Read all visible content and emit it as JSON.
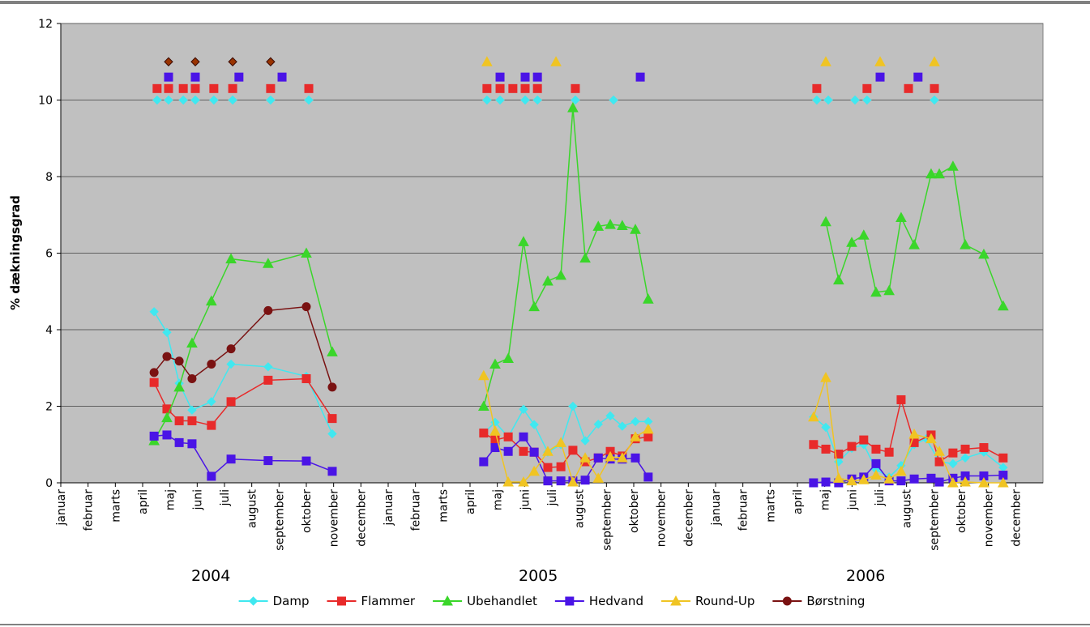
{
  "chart_data": {
    "type": "line",
    "y_label": "% dækningsgrad",
    "ylim": [
      0,
      12
    ],
    "yticks": [
      0,
      2,
      4,
      6,
      8,
      10,
      12
    ],
    "grid": true,
    "xlim": [
      0,
      36
    ],
    "xticks": [
      {
        "value": 0,
        "label": "januar"
      },
      {
        "value": 1,
        "label": "februar"
      },
      {
        "value": 2,
        "label": "marts"
      },
      {
        "value": 3,
        "label": "april"
      },
      {
        "value": 4,
        "label": "maj"
      },
      {
        "value": 5,
        "label": "juni"
      },
      {
        "value": 6,
        "label": "juli"
      },
      {
        "value": 7,
        "label": "august"
      },
      {
        "value": 8,
        "label": "september"
      },
      {
        "value": 9,
        "label": "oktober"
      },
      {
        "value": 10,
        "label": "november"
      },
      {
        "value": 11,
        "label": "december"
      },
      {
        "value": 12,
        "label": "januar"
      },
      {
        "value": 13,
        "label": "februar"
      },
      {
        "value": 14,
        "label": "marts"
      },
      {
        "value": 15,
        "label": "april"
      },
      {
        "value": 16,
        "label": "maj"
      },
      {
        "value": 17,
        "label": "juni"
      },
      {
        "value": 18,
        "label": "juli"
      },
      {
        "value": 19,
        "label": "august"
      },
      {
        "value": 20,
        "label": "september"
      },
      {
        "value": 21,
        "label": "oktober"
      },
      {
        "value": 22,
        "label": "november"
      },
      {
        "value": 23,
        "label": "december"
      },
      {
        "value": 24,
        "label": "januar"
      },
      {
        "value": 25,
        "label": "februar"
      },
      {
        "value": 26,
        "label": "marts"
      },
      {
        "value": 27,
        "label": "april"
      },
      {
        "value": 28,
        "label": "maj"
      },
      {
        "value": 29,
        "label": "juni"
      },
      {
        "value": 30,
        "label": "juli"
      },
      {
        "value": 31,
        "label": "august"
      },
      {
        "value": 32,
        "label": "september"
      },
      {
        "value": 33,
        "label": "oktober"
      },
      {
        "value": 34,
        "label": "november"
      },
      {
        "value": 35,
        "label": "december"
      }
    ],
    "year_labels": [
      "2004",
      "2005",
      "2006"
    ],
    "series": [
      {
        "name": "Damp",
        "color": "#40e8f0",
        "marker": "diamond",
        "x": [
          3.42,
          3.89,
          4.34,
          4.81,
          5.52,
          6.24,
          7.6,
          9.0,
          9.95,
          null,
          15.5,
          15.92,
          16.4,
          16.96,
          17.35,
          17.85,
          18.33,
          18.77,
          19.22,
          19.7,
          20.14,
          20.58,
          21.06,
          21.53,
          null,
          27.59,
          28.04,
          28.51,
          28.99,
          29.43,
          29.88,
          30.36,
          30.8,
          31.28,
          31.72,
          32.2,
          32.7,
          33.15,
          33.83,
          34.54
        ],
        "values": [
          4.47,
          3.93,
          2.6,
          1.9,
          2.12,
          3.1,
          3.03,
          2.78,
          1.28,
          null,
          1.3,
          1.58,
          1.2,
          1.92,
          1.52,
          0.8,
          1.0,
          2.0,
          1.1,
          1.53,
          1.75,
          1.48,
          1.6,
          1.6,
          null,
          1.72,
          1.45,
          0.55,
          0.9,
          1.0,
          0.35,
          0.15,
          0.45,
          1.0,
          1.15,
          0.55,
          0.5,
          0.65,
          0.8,
          0.4
        ],
        "treatment_level": 10,
        "treatment_x": [
          3.53,
          3.95,
          4.49,
          4.93,
          5.61,
          6.3,
          7.69,
          9.09,
          15.62,
          16.1,
          17.02,
          17.47,
          18.86,
          20.26,
          27.71,
          28.13,
          29.11,
          29.55,
          32.02
        ]
      },
      {
        "name": "Flammer",
        "color": "#e82a2a",
        "marker": "square",
        "x": [
          3.42,
          3.89,
          4.34,
          4.81,
          5.52,
          6.24,
          7.6,
          9.0,
          9.95,
          null,
          15.5,
          15.92,
          16.4,
          16.96,
          17.35,
          17.85,
          18.33,
          18.77,
          19.22,
          19.7,
          20.14,
          20.58,
          21.06,
          21.53,
          null,
          27.59,
          28.04,
          28.51,
          28.99,
          29.43,
          29.88,
          30.36,
          30.8,
          31.28,
          31.9,
          32.2,
          32.7,
          33.15,
          33.83,
          34.54
        ],
        "values": [
          2.62,
          1.93,
          1.62,
          1.62,
          1.5,
          2.12,
          2.68,
          2.72,
          1.68,
          null,
          1.3,
          1.12,
          1.2,
          0.82,
          0.8,
          0.4,
          0.42,
          0.85,
          0.55,
          0.65,
          0.82,
          0.7,
          1.15,
          1.2,
          null,
          1.0,
          0.88,
          0.75,
          0.95,
          1.12,
          0.88,
          0.8,
          2.17,
          1.05,
          1.25,
          0.55,
          0.78,
          0.88,
          0.92,
          0.65
        ],
        "treatment_level": 10.3,
        "treatment_x": [
          3.53,
          3.95,
          4.49,
          4.93,
          5.61,
          6.3,
          7.69,
          9.09,
          15.62,
          16.1,
          16.57,
          17.02,
          17.47,
          18.86,
          27.71,
          29.55,
          31.07,
          32.02
        ]
      },
      {
        "name": "Ubehandlet",
        "color": "#3ad62a",
        "marker": "triangle",
        "x": [
          3.42,
          3.89,
          4.34,
          4.81,
          5.52,
          6.24,
          7.6,
          9.0,
          9.95,
          null,
          15.5,
          15.92,
          16.4,
          16.96,
          17.35,
          17.85,
          18.33,
          18.77,
          19.22,
          19.7,
          20.14,
          20.58,
          21.06,
          21.53,
          null,
          28.04,
          28.51,
          28.99,
          29.43,
          29.88,
          30.36,
          30.8,
          31.28,
          31.9,
          32.2,
          32.7,
          33.15,
          33.83,
          34.54
        ],
        "values": [
          1.1,
          1.7,
          2.5,
          3.65,
          4.75,
          5.85,
          5.73,
          6.0,
          3.42,
          null,
          2.0,
          3.1,
          3.25,
          6.3,
          4.6,
          5.27,
          5.42,
          9.8,
          5.87,
          6.7,
          6.75,
          6.72,
          6.62,
          4.8,
          null,
          6.82,
          5.3,
          6.28,
          6.47,
          4.98,
          5.02,
          6.93,
          6.22,
          8.07,
          8.07,
          8.27,
          6.22,
          5.97,
          4.62
        ]
      },
      {
        "name": "Hedvand",
        "color": "#4a14e6",
        "marker": "square",
        "x": [
          3.42,
          3.89,
          4.34,
          4.81,
          5.52,
          6.24,
          7.6,
          9.0,
          9.95,
          null,
          15.5,
          15.92,
          16.4,
          16.96,
          17.35,
          17.85,
          18.33,
          18.77,
          19.22,
          19.7,
          20.14,
          20.58,
          21.06,
          21.53,
          null,
          27.59,
          28.04,
          28.51,
          28.99,
          29.43,
          29.88,
          30.36,
          30.8,
          31.28,
          31.9,
          32.2,
          32.7,
          33.15,
          33.83,
          34.54
        ],
        "values": [
          1.22,
          1.25,
          1.05,
          1.02,
          0.17,
          0.62,
          0.58,
          0.57,
          0.3,
          null,
          0.55,
          0.92,
          0.82,
          1.2,
          0.8,
          0.05,
          0.05,
          0.05,
          0.07,
          0.65,
          0.62,
          0.62,
          0.65,
          0.15,
          null,
          0.0,
          0.02,
          0.0,
          0.1,
          0.15,
          0.5,
          0.05,
          0.05,
          0.1,
          0.12,
          0.02,
          0.12,
          0.18,
          0.18,
          0.2
        ],
        "treatment_level": 10.6,
        "treatment_x": [
          3.95,
          4.93,
          6.53,
          8.11,
          16.1,
          17.02,
          17.47,
          21.24,
          30.03,
          31.42
        ]
      },
      {
        "name": "Round-Up",
        "color": "#f0c423",
        "marker": "triangle",
        "x": [
          15.5,
          15.92,
          16.4,
          16.96,
          17.35,
          17.85,
          18.33,
          18.77,
          19.22,
          19.7,
          20.14,
          20.58,
          21.06,
          21.53,
          null,
          27.59,
          28.04,
          28.51,
          28.99,
          29.43,
          29.88,
          30.36,
          30.8,
          31.28,
          31.9,
          32.2,
          32.7,
          33.15,
          33.83,
          34.54
        ],
        "values": [
          2.8,
          1.35,
          0.02,
          0.02,
          0.3,
          0.82,
          1.05,
          0.02,
          0.65,
          0.12,
          0.68,
          0.65,
          1.2,
          1.4,
          null,
          1.72,
          2.75,
          0.12,
          0.05,
          0.08,
          0.2,
          0.1,
          0.3,
          1.27,
          1.15,
          0.82,
          0.0,
          0.02,
          0.0,
          0.0
        ],
        "treatment_level": 11,
        "treatment_x": [
          15.62,
          18.15,
          28.04,
          30.03,
          32.02
        ]
      },
      {
        "name": "Børstning",
        "color": "#7a1212",
        "marker": "circle",
        "x": [
          3.42,
          3.89,
          4.34,
          4.81,
          5.52,
          6.24,
          7.6,
          9.0,
          9.95
        ],
        "values": [
          2.88,
          3.3,
          3.18,
          2.72,
          3.1,
          3.5,
          4.5,
          4.6,
          2.5
        ],
        "treatment_level": 11,
        "treatment_marker": "diamond",
        "treatment_color": "#993300",
        "treatment_x": [
          3.95,
          4.93,
          6.3,
          7.69
        ]
      }
    ]
  }
}
